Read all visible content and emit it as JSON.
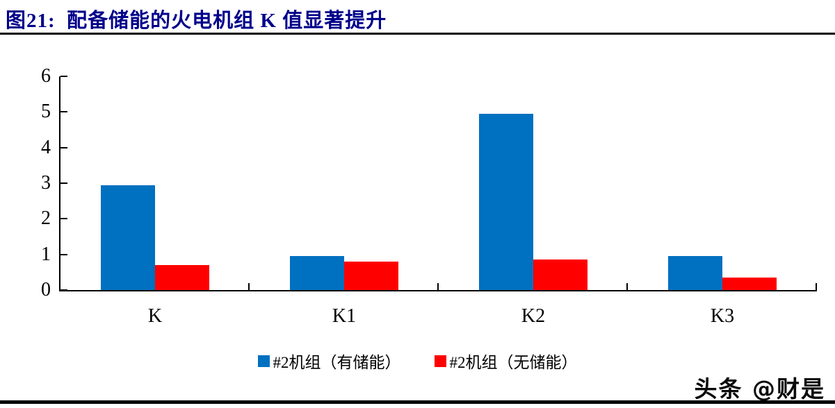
{
  "header": {
    "title": "图21:  配备储能的火电机组 K 值显著提升",
    "title_color": "#00008B"
  },
  "watermark": {
    "text": "头条 @财是"
  },
  "chart_data": {
    "type": "bar",
    "title": "配备储能的火电机组 K 值显著提升",
    "categories": [
      "K",
      "K1",
      "K2",
      "K3"
    ],
    "series": [
      {
        "name": "#2机组（有储能）",
        "color": "#0070C0",
        "values": [
          2.95,
          0.95,
          4.95,
          0.95
        ]
      },
      {
        "name": "#2机组（无储能）",
        "color": "#FF0000",
        "values": [
          0.7,
          0.8,
          0.85,
          0.35
        ]
      }
    ],
    "xlabel": "",
    "ylabel": "",
    "ylim": [
      0,
      6
    ],
    "yticks": [
      0,
      1,
      2,
      3,
      4,
      5,
      6
    ],
    "grid": false,
    "legend_position": "bottom",
    "axis_color": "#000000"
  }
}
